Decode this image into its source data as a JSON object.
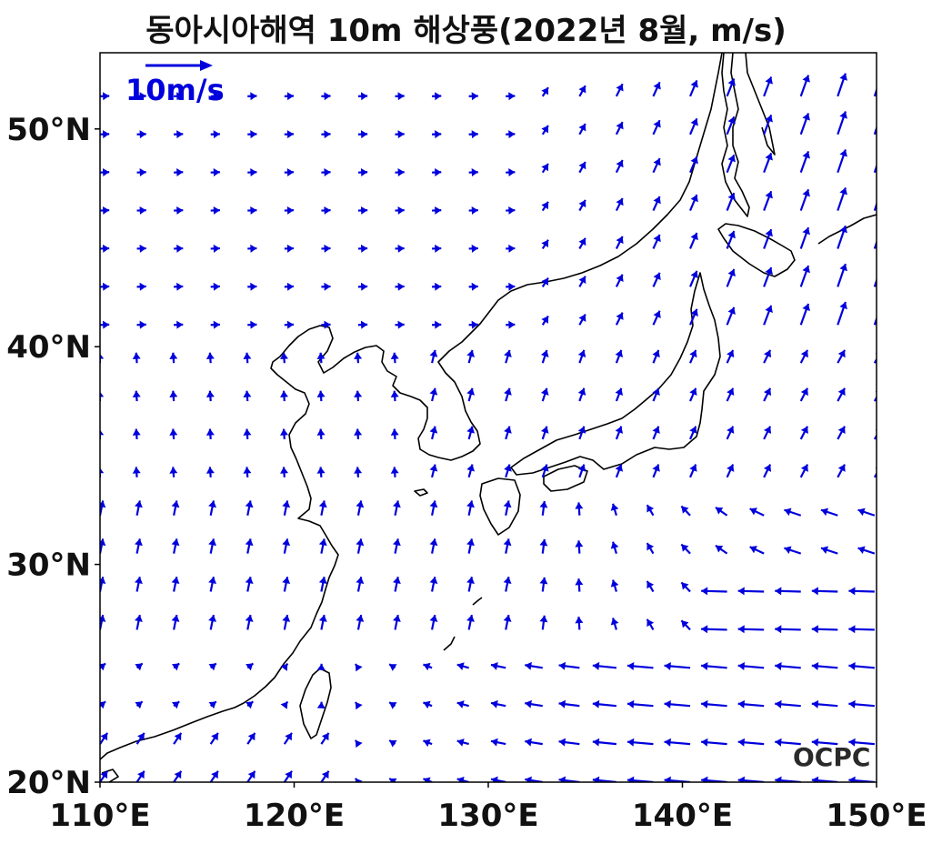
{
  "title": "동아시아해역 10m 해상풍(2022년 8월, m/s)",
  "map": {
    "extent": {
      "lon": [
        110,
        150
      ],
      "lat": [
        20,
        53.5
      ]
    },
    "x_ticks": [
      {
        "value": 110,
        "label": "110°E"
      },
      {
        "value": 120,
        "label": "120°E"
      },
      {
        "value": 130,
        "label": "130°E"
      },
      {
        "value": 140,
        "label": "140°E"
      },
      {
        "value": 150,
        "label": "150°E"
      }
    ],
    "y_ticks": [
      {
        "value": 20,
        "label": "20°N"
      },
      {
        "value": 30,
        "label": "30°N"
      },
      {
        "value": 40,
        "label": "40°N"
      },
      {
        "value": 50,
        "label": "50°N"
      }
    ],
    "arrow_color": "#0000dd",
    "coast_color": "#000000",
    "reference_key": {
      "label": "10m/s",
      "speed": 10,
      "color": "#0000dd"
    },
    "logo_text": "OCPC"
  }
}
